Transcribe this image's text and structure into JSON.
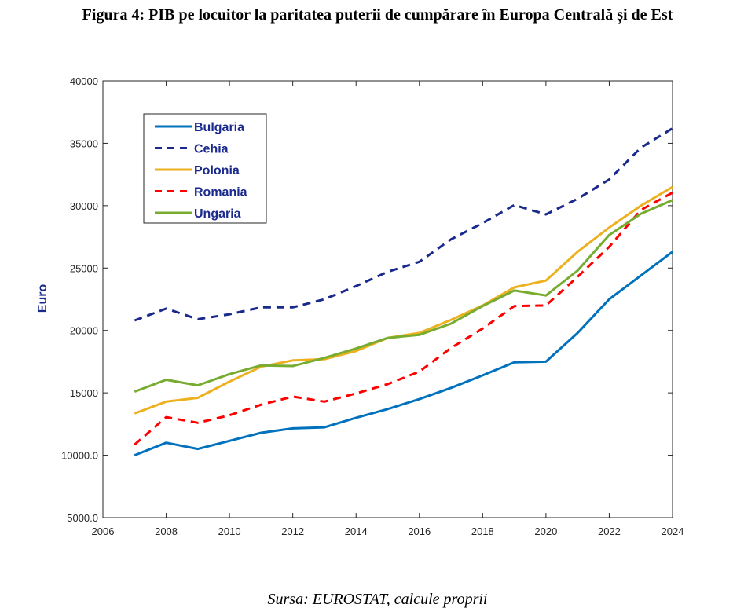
{
  "figure": {
    "title": "Figura 4: PIB pe locuitor la paritatea puterii de cumpărare în Europa Centrală și de Est",
    "caption": "Sursa: EUROSTAT, calcule proprii"
  },
  "chart_data": {
    "type": "line",
    "title": "Figura 4: PIB pe locuitor la paritatea puterii de cumpărare în Europa Centrală și de Est",
    "xlabel": "",
    "ylabel": "Euro",
    "xlim": [
      2006,
      2024
    ],
    "ylim": [
      5000,
      40000
    ],
    "xticks": [
      2006,
      2008,
      2010,
      2012,
      2014,
      2016,
      2018,
      2020,
      2022,
      2024
    ],
    "xtick_labels": [
      "2006",
      "2008",
      "2010",
      "2012",
      "2014",
      "2016",
      "2018",
      "2020",
      "2022",
      "2024"
    ],
    "yticks": [
      5000,
      10000,
      15000,
      20000,
      25000,
      30000,
      35000,
      40000
    ],
    "ytick_labels": [
      "5000.0",
      "10000.0",
      "15000",
      "20000",
      "25000",
      "30000",
      "35000",
      "40000"
    ],
    "grid": false,
    "legend_position": "top-left",
    "x": [
      2007,
      2008,
      2009,
      2010,
      2011,
      2012,
      2013,
      2014,
      2015,
      2016,
      2017,
      2018,
      2019,
      2020,
      2021,
      2022,
      2023,
      2024
    ],
    "series": [
      {
        "name": "Bulgaria",
        "color": "#0072bd",
        "dashed": false,
        "values": [
          10000,
          11000,
          10500,
          11150,
          11800,
          12150,
          12230,
          13000,
          13700,
          14500,
          15400,
          16400,
          17450,
          17500,
          19800,
          22500,
          24400,
          26300
        ]
      },
      {
        "name": "Cehia",
        "color": "#1a2a8c",
        "dashed": true,
        "values": [
          20800,
          21750,
          20900,
          21300,
          21850,
          21850,
          22500,
          23550,
          24700,
          25500,
          27300,
          28600,
          30050,
          29300,
          30550,
          32100,
          34650,
          36200
        ]
      },
      {
        "name": "Polonia",
        "color": "#edb120",
        "dashed": false,
        "values": [
          13350,
          14300,
          14600,
          15900,
          17100,
          17600,
          17700,
          18350,
          19400,
          19800,
          20850,
          22000,
          23450,
          24000,
          26300,
          28250,
          30000,
          31500
        ]
      },
      {
        "name": "Romania",
        "color": "#ff0000",
        "dashed": true,
        "values": [
          10850,
          13050,
          12600,
          13200,
          14050,
          14700,
          14300,
          14950,
          15700,
          16700,
          18600,
          20150,
          21950,
          22000,
          24300,
          26700,
          29650,
          31050
        ]
      },
      {
        "name": "Ungaria",
        "color": "#77ac30",
        "dashed": false,
        "values": [
          15100,
          16050,
          15600,
          16500,
          17200,
          17150,
          17800,
          18550,
          19400,
          19650,
          20550,
          21950,
          23200,
          22800,
          24800,
          27650,
          29350,
          30450
        ]
      }
    ]
  }
}
